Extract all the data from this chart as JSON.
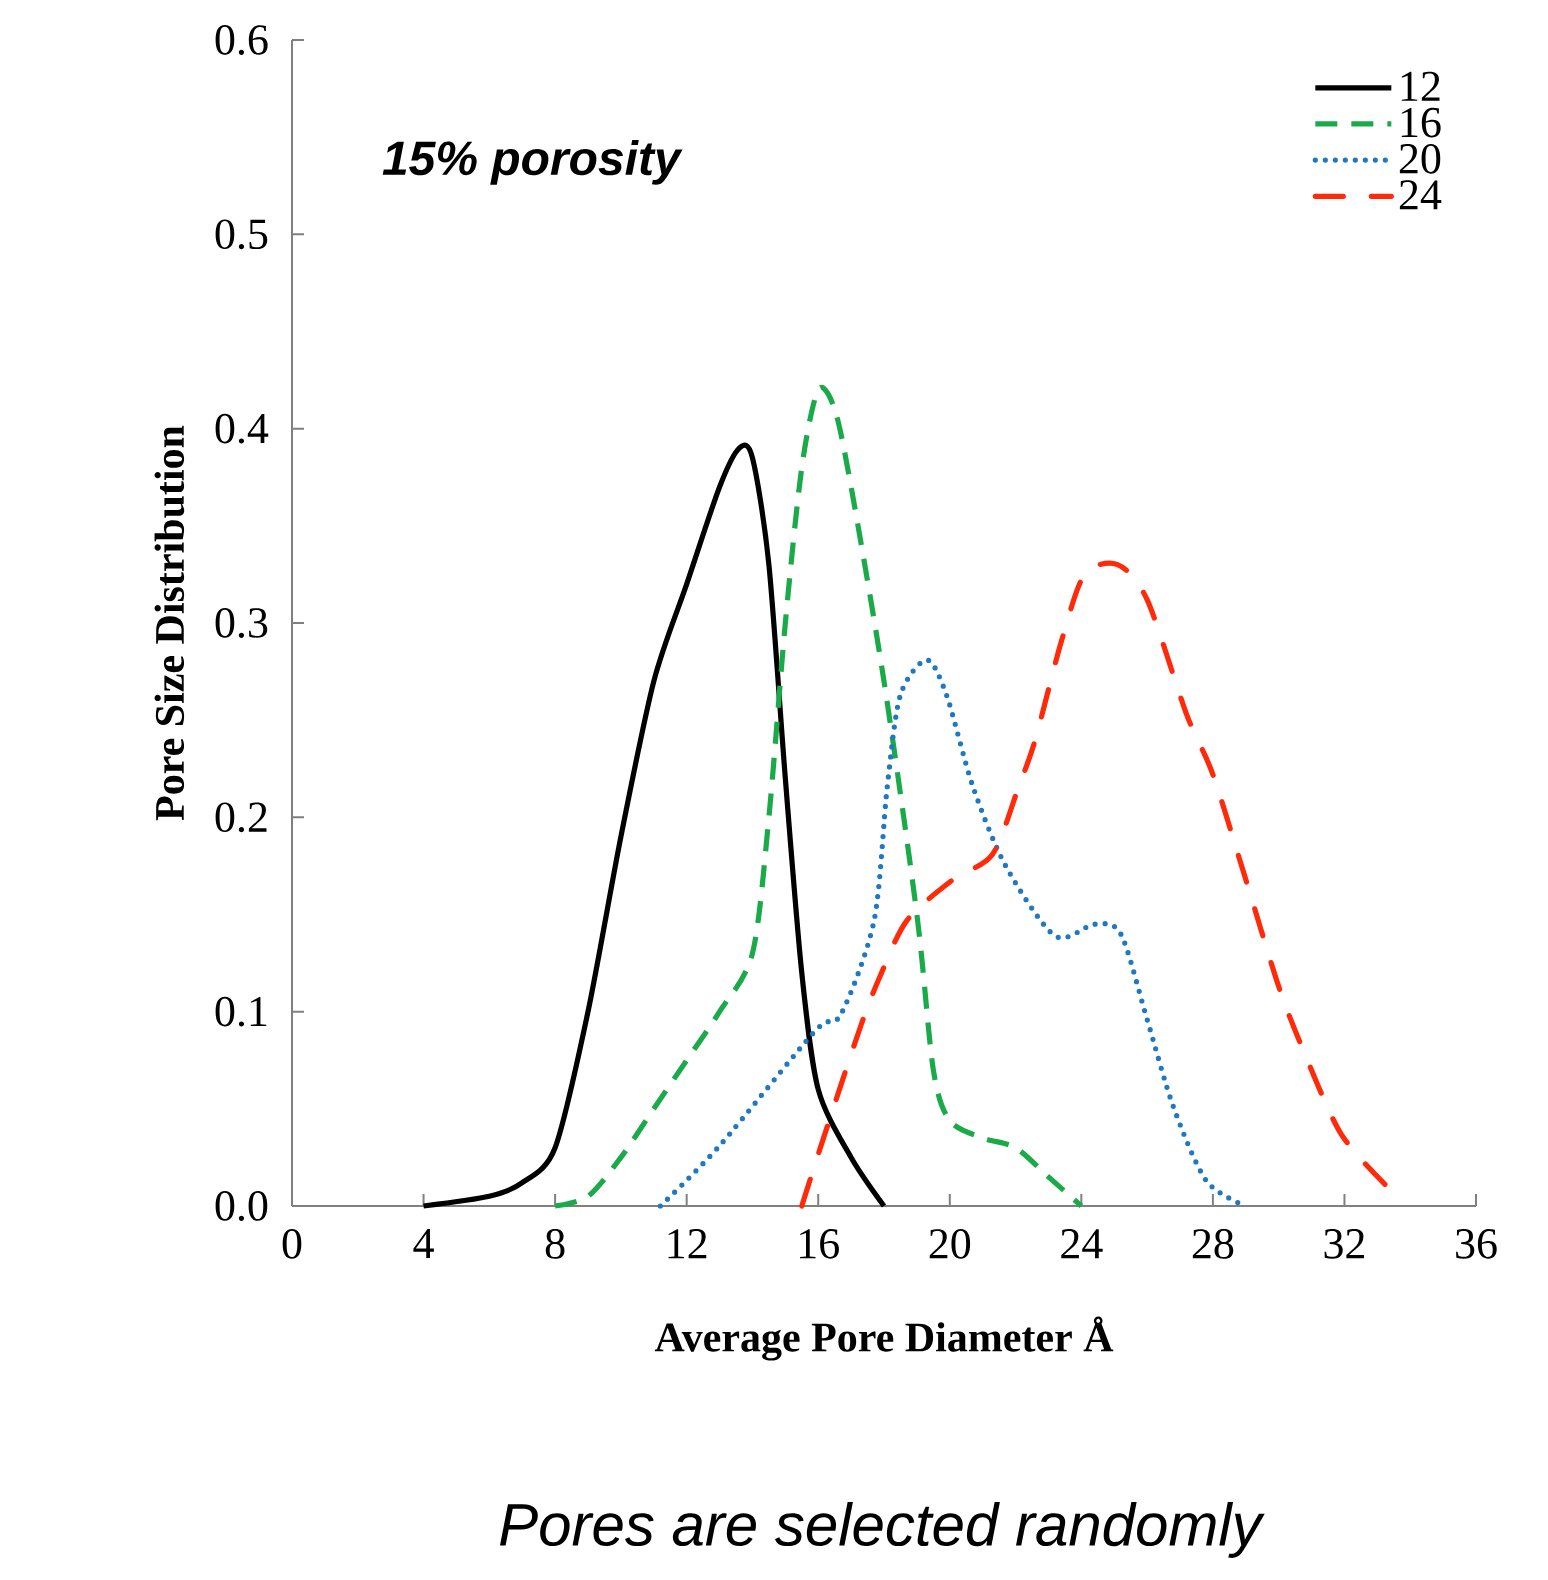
{
  "chart_data": {
    "type": "line",
    "xlabel": "Average Pore Diameter Å",
    "ylabel": "Pore Size Distribution",
    "annotations": [
      "*15% porosity*",
      "Pores are selected randomly"
    ],
    "xlim": [
      0,
      36
    ],
    "xticks": [
      0,
      4,
      8,
      12,
      16,
      20,
      24,
      28,
      32,
      36
    ],
    "ylim": [
      0,
      0.6
    ],
    "yticks": [
      {
        "value": 0,
        "label": "0.0"
      },
      0.1,
      0.2,
      0.3,
      0.4,
      0.5,
      0.6
    ],
    "grid": false,
    "legend": "top right",
    "series": [
      {
        "name": "12",
        "color": "#000000",
        "line_style": "solid",
        "x": [
          4,
          6,
          7,
          8,
          9,
          10,
          11,
          12,
          13,
          13.6,
          14,
          14.5,
          15,
          15.5,
          16,
          17,
          18
        ],
        "values": [
          0,
          0.005,
          0.012,
          0.03,
          0.1,
          0.19,
          0.27,
          0.32,
          0.37,
          0.39,
          0.385,
          0.33,
          0.22,
          0.12,
          0.06,
          0.025,
          0
        ]
      },
      {
        "name": "16",
        "color": "#1aaa4a",
        "line_style": "dashed",
        "x": [
          8,
          9,
          10,
          11,
          12,
          13,
          14,
          14.5,
          15,
          15.5,
          16,
          16.5,
          17,
          18,
          19,
          19.5,
          20,
          21,
          22,
          23,
          24
        ],
        "values": [
          0,
          0.005,
          0.025,
          0.05,
          0.075,
          0.1,
          0.13,
          0.2,
          0.3,
          0.38,
          0.42,
          0.41,
          0.37,
          0.27,
          0.15,
          0.07,
          0.044,
          0.035,
          0.03,
          0.015,
          0
        ]
      },
      {
        "name": "20",
        "color": "#1f78c0",
        "line_style": "dotted",
        "x": [
          11.2,
          13,
          15.9,
          16.7,
          17.7,
          18.1,
          18.5,
          19.3,
          19.9,
          20.7,
          21.7,
          23.2,
          24.4,
          25.2,
          26,
          26.8,
          27.8,
          29
        ],
        "values": [
          0,
          0.031,
          0.09,
          0.099,
          0.147,
          0.216,
          0.263,
          0.281,
          0.263,
          0.216,
          0.175,
          0.139,
          0.145,
          0.14,
          0.096,
          0.051,
          0.013,
          0
        ]
      },
      {
        "name": "24",
        "color": "#ff2a0a",
        "line_style": "dashdot",
        "x": [
          15.5,
          16.2,
          17.3,
          17.9,
          18.7,
          20.1,
          21.3,
          22.1,
          22.6,
          23.4,
          24.1,
          25.1,
          26,
          27.2,
          28,
          29,
          30,
          30.8,
          31.9,
          33.3
        ],
        "values": [
          0,
          0.037,
          0.093,
          0.119,
          0.147,
          0.168,
          0.181,
          0.216,
          0.24,
          0.291,
          0.325,
          0.33,
          0.312,
          0.253,
          0.222,
          0.168,
          0.113,
          0.078,
          0.037,
          0.01
        ]
      }
    ]
  }
}
